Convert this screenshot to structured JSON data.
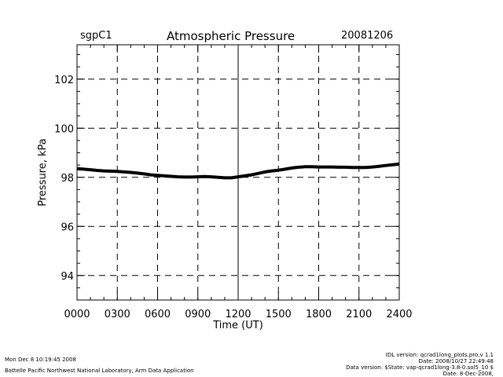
{
  "header": {
    "site": "sgpC1",
    "title": "Atmospheric Pressure",
    "date": "20081206"
  },
  "footer": {
    "left_line1": "Mon Dec  8 10:19:45 2008",
    "left_line2": "Battelle Pacific Northwest National Laboratory, Arm Data Application",
    "right_line1": "IDL version: qcrad1long_plots.pro,v 1.1",
    "right_line2": "Date: 2008/10/27 22:49:48",
    "right_line3": "Data version: $State: vap-qcrad1long-3.8-0.sol5_10 $",
    "right_line4": "Date: 8-Dec-2008,"
  },
  "chart_data": {
    "type": "line",
    "title": "Atmospheric Pressure",
    "xlabel": "Time (UT)",
    "ylabel": "Pressure, kPa",
    "xlim": [
      0,
      24
    ],
    "ylim": [
      93,
      103.4
    ],
    "x_ticks": [
      0,
      3,
      6,
      9,
      12,
      15,
      18,
      21,
      24
    ],
    "x_tick_labels": [
      "0000",
      "0300",
      "0600",
      "0900",
      "1200",
      "1500",
      "1800",
      "2100",
      "2400"
    ],
    "y_ticks": [
      94,
      96,
      98,
      100,
      102
    ],
    "y_tick_labels": [
      "94",
      "96",
      "98",
      "100",
      "102"
    ],
    "grid": "dashed",
    "line_color": "#000000",
    "series": [
      {
        "x": [
          0,
          0.5,
          1,
          1.5,
          2,
          2.5,
          3,
          3.5,
          4,
          4.5,
          5,
          5.5,
          6,
          6.5,
          7,
          7.5,
          8,
          8.5,
          9,
          9.5,
          10,
          10.5,
          11,
          11.5,
          12,
          12.5,
          13,
          13.5,
          14,
          14.5,
          15,
          15.5,
          16,
          16.5,
          17,
          17.5,
          18,
          18.5,
          19,
          19.5,
          20,
          20.5,
          21,
          21.5,
          22,
          22.5,
          23,
          23.5,
          24
        ],
        "values": [
          98.35,
          98.33,
          98.31,
          98.28,
          98.26,
          98.25,
          98.24,
          98.22,
          98.2,
          98.17,
          98.14,
          98.1,
          98.08,
          98.06,
          98.04,
          98.02,
          98.01,
          98.01,
          98.02,
          98.03,
          98.02,
          98.0,
          97.98,
          97.98,
          98.02,
          98.06,
          98.1,
          98.16,
          98.22,
          98.26,
          98.29,
          98.33,
          98.38,
          98.41,
          98.43,
          98.43,
          98.42,
          98.42,
          98.42,
          98.41,
          98.41,
          98.4,
          98.4,
          98.4,
          98.42,
          98.45,
          98.48,
          98.51,
          98.54
        ]
      }
    ]
  }
}
